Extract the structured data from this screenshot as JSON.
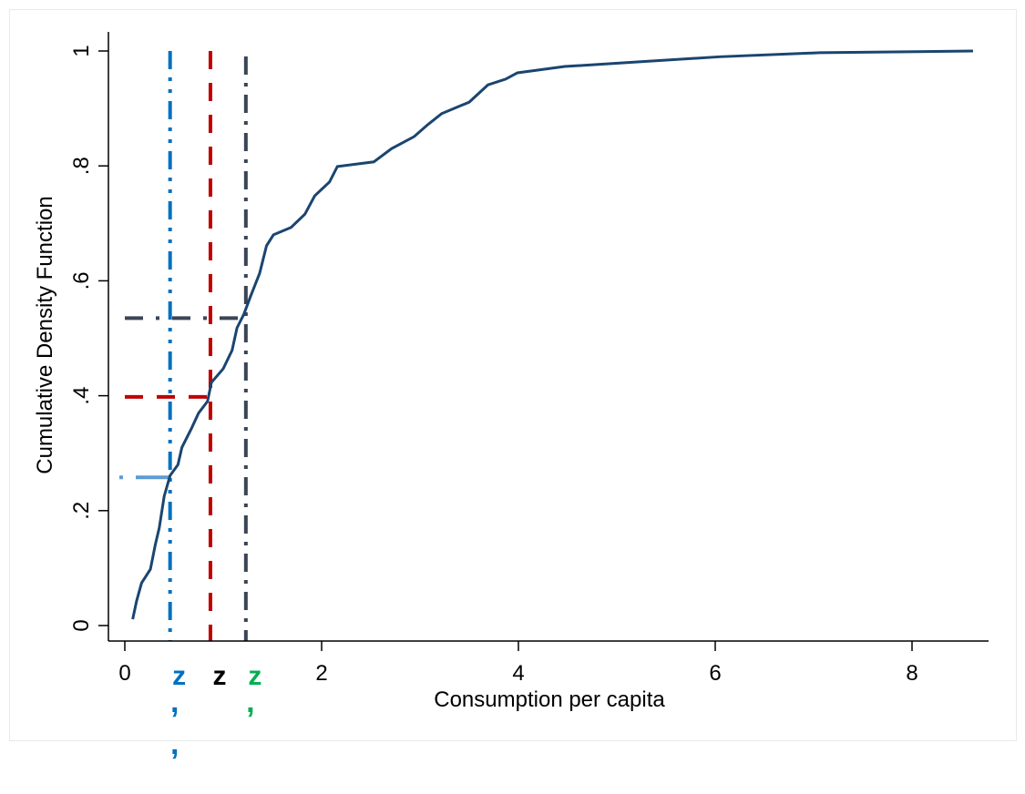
{
  "chart_data": {
    "type": "line",
    "title": "",
    "xlabel": "Consumption per capita",
    "ylabel": "Cumulative Density Function",
    "xlim": [
      0,
      8.8
    ],
    "ylim": [
      0,
      1
    ],
    "xticks": [
      {
        "v": 0,
        "label": "0"
      },
      {
        "v": 2,
        "label": "2"
      },
      {
        "v": 4,
        "label": "4"
      },
      {
        "v": 6,
        "label": "6"
      },
      {
        "v": 8,
        "label": "8"
      }
    ],
    "yticks": [
      {
        "v": 0,
        "label": "0"
      },
      {
        "v": 0.2,
        "label": ".2"
      },
      {
        "v": 0.4,
        "label": ".4"
      },
      {
        "v": 0.6,
        "label": ".6"
      },
      {
        "v": 0.8,
        "label": ".8"
      },
      {
        "v": 1,
        "label": "1"
      }
    ],
    "grid": false,
    "series": [
      {
        "name": "CDF",
        "color": "#1a4570",
        "x": [
          0.08,
          0.12,
          0.17,
          0.26,
          0.31,
          0.35,
          0.4,
          0.46,
          0.54,
          0.58,
          0.68,
          0.75,
          0.84,
          0.88,
          1.0,
          1.09,
          1.14,
          1.21,
          1.28,
          1.37,
          1.44,
          1.51,
          1.69,
          1.83,
          1.93,
          2.08,
          2.16,
          2.53,
          2.71,
          2.94,
          3.08,
          3.22,
          3.5,
          3.69,
          3.87,
          3.99,
          4.47,
          5.21,
          6.05,
          7.06,
          8.62
        ],
        "y": [
          0.011,
          0.043,
          0.074,
          0.098,
          0.141,
          0.17,
          0.225,
          0.261,
          0.28,
          0.31,
          0.344,
          0.37,
          0.39,
          0.423,
          0.447,
          0.479,
          0.518,
          0.542,
          0.574,
          0.613,
          0.661,
          0.68,
          0.693,
          0.716,
          0.748,
          0.772,
          0.799,
          0.807,
          0.83,
          0.851,
          0.872,
          0.891,
          0.911,
          0.941,
          0.951,
          0.962,
          0.973,
          0.981,
          0.99,
          0.997,
          1.0
        ]
      }
    ],
    "reference_lines": [
      {
        "name": "z-double-prime",
        "x": 0.46,
        "y": 0.258,
        "color": "#0070c0",
        "hcolor": "#5b9bd5",
        "label": "z",
        "marks": ",,"
      },
      {
        "name": "z",
        "x": 0.87,
        "y": 0.398,
        "color": "#c00000",
        "hcolor": "#c00000",
        "label": "z",
        "label_color": "#000000",
        "marks": ""
      },
      {
        "name": "z-prime",
        "x": 1.23,
        "y": 0.535,
        "color": "#3a4555",
        "hcolor": "#3a4555",
        "label": "z",
        "label_color": "#00b050",
        "marks": ","
      }
    ]
  }
}
